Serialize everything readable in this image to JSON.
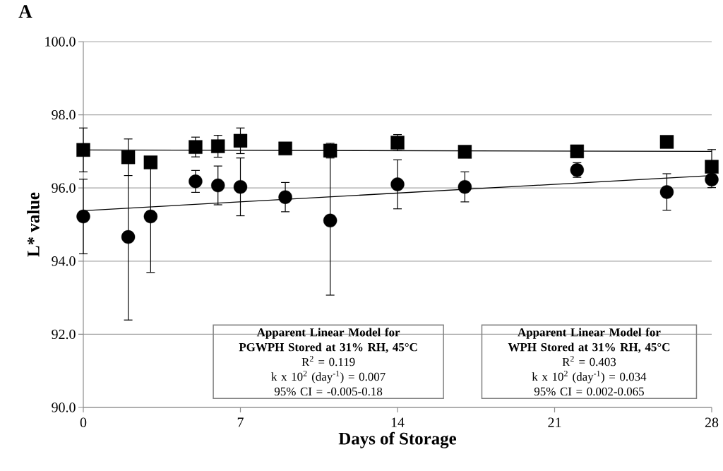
{
  "chart_data": {
    "type": "scatter",
    "title": "A",
    "xlabel": "Days of Storage",
    "ylabel": "L* value",
    "xlim": [
      0,
      28
    ],
    "xticks": [
      0,
      7,
      14,
      21,
      28
    ],
    "ylim": [
      90,
      100
    ],
    "yticks": [
      {
        "value": 90,
        "label": "90.0"
      },
      {
        "value": 92,
        "label": "92.0"
      },
      {
        "value": 94,
        "label": "94.0"
      },
      {
        "value": 96,
        "label": "96.0"
      },
      {
        "value": 98,
        "label": "98.0"
      },
      {
        "value": 100,
        "label": "100.0"
      }
    ],
    "grid": "y",
    "series": [
      {
        "marker": "square",
        "color": "#000000",
        "x": [
          0,
          2,
          3,
          5,
          6,
          7,
          9,
          11,
          14,
          17,
          22,
          26,
          28
        ],
        "values": [
          97.04,
          96.84,
          96.7,
          97.12,
          97.14,
          97.29,
          97.08,
          97.02,
          97.24,
          96.99,
          97.0,
          97.26,
          96.58
        ],
        "errors": [
          0.6,
          0.5,
          null,
          0.27,
          0.3,
          0.35,
          null,
          0.2,
          0.22,
          null,
          null,
          null,
          0.47
        ]
      },
      {
        "marker": "circle",
        "color": "#000000",
        "x": [
          0,
          2,
          3,
          5,
          6,
          7,
          9,
          11,
          14,
          17,
          22,
          26,
          28
        ],
        "values": [
          95.22,
          94.66,
          95.22,
          96.18,
          96.07,
          96.03,
          95.75,
          95.11,
          96.1,
          96.03,
          96.49,
          95.89,
          96.23
        ],
        "errors": [
          1.02,
          2.27,
          1.53,
          0.3,
          0.53,
          0.79,
          0.4,
          2.04,
          0.67,
          0.41,
          0.2,
          0.5,
          0.22
        ]
      },
      {
        "type": "line",
        "marker": "none",
        "line_style": "solid",
        "color": "#000000",
        "x": [
          0,
          28
        ],
        "values": [
          97.04,
          97.0
        ]
      },
      {
        "type": "line",
        "marker": "none",
        "line_style": "solid",
        "color": "#000000",
        "x": [
          0,
          28
        ],
        "values": [
          95.38,
          96.34
        ]
      }
    ],
    "annotations": [
      "Apparent Linear Model for PGWPH Stored at 31% RH, 45°C",
      "R$^{2}$ = 0.119",
      "k x 10$^{2}$ (day$^{-1}$) = 0.007",
      "95% CI = -0.005-0.18",
      "Apparent Linear Model for WPH Stored at 31% RH, 45°C",
      "R$^{2}$ = 0.403",
      "k x 10$^{2}$ (day$^{-1}$) = 0.034",
      "95% CI = 0.002-0.065"
    ]
  }
}
